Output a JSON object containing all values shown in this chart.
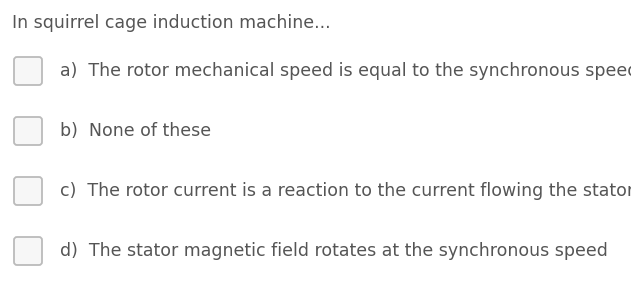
{
  "title": "In squirrel cage induction machine...",
  "options": [
    "a)  The rotor mechanical speed is equal to the synchronous speed",
    "b)  None of these",
    "c)  The rotor current is a reaction to the current flowing the stator",
    "d)  The stator magnetic field rotates at the synchronous speed"
  ],
  "title_fontsize": 12.5,
  "option_fontsize": 12.5,
  "text_color": "#555555",
  "bg_color": "#ffffff",
  "checkbox_edge_color": "#bbbbbb",
  "checkbox_face_color": "#f7f7f7"
}
